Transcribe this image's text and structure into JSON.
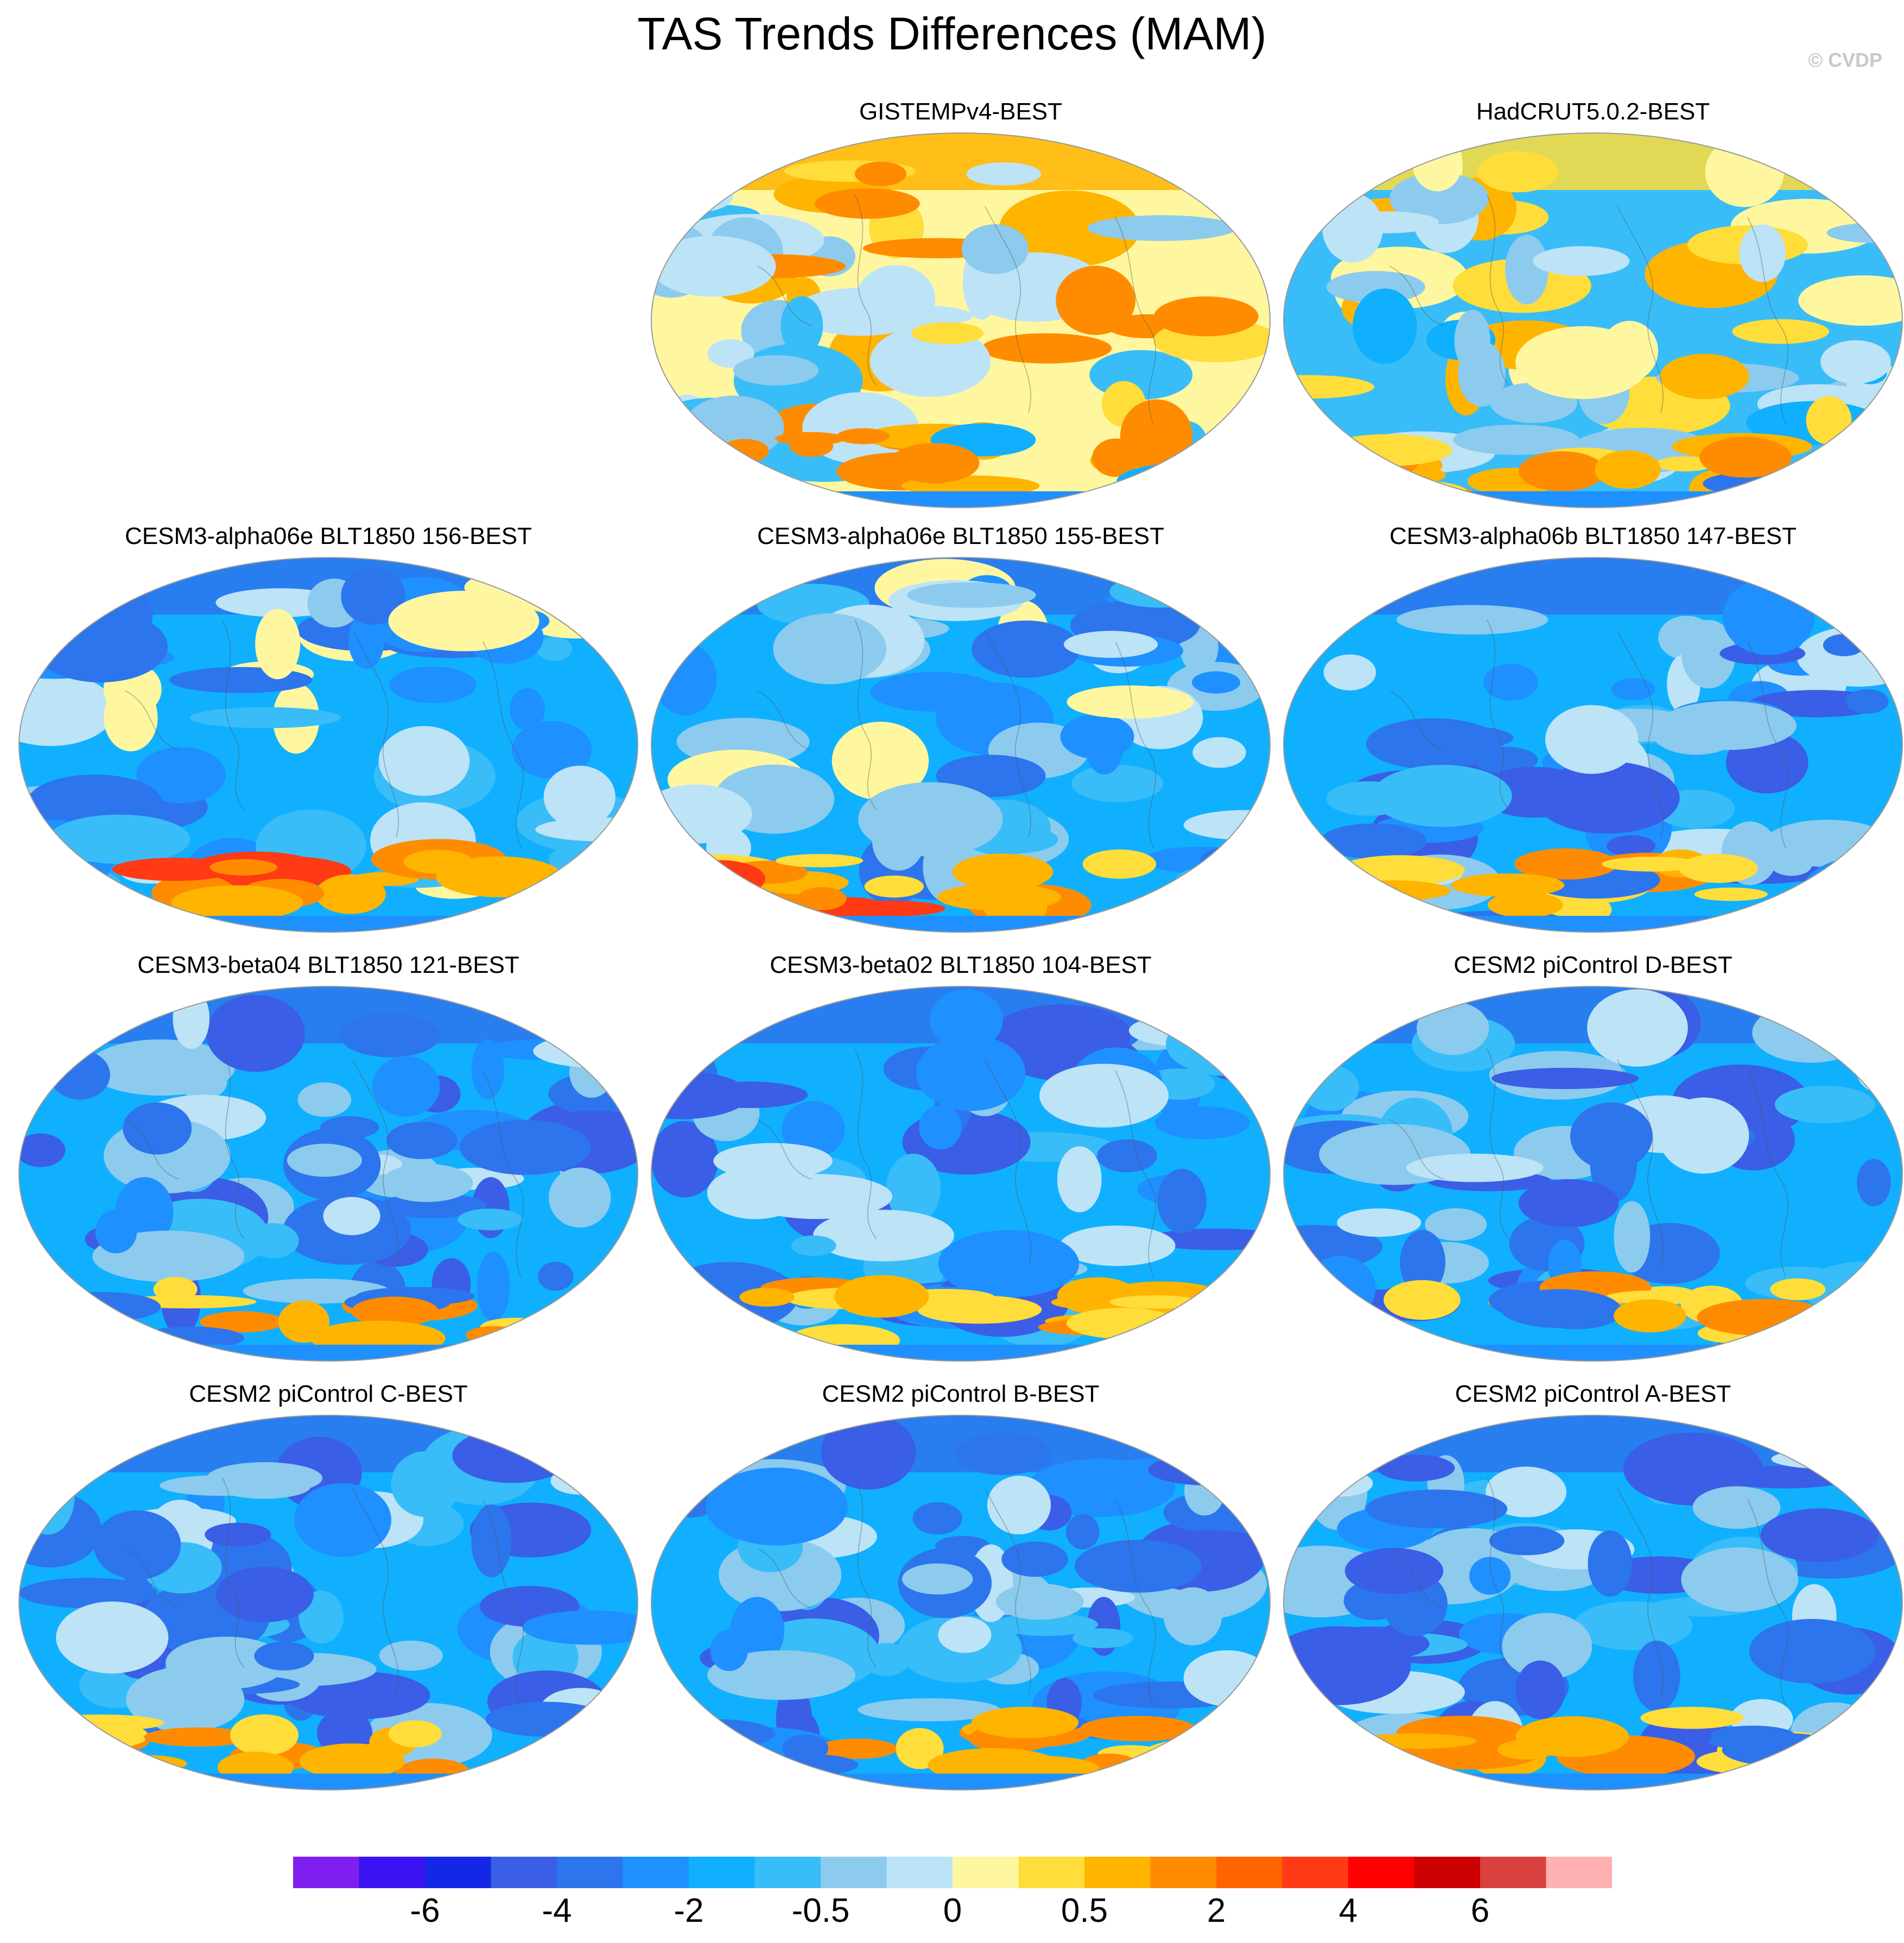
{
  "title": "TAS Trends Differences (MAM)",
  "watermark": "© CVDP",
  "panels": [
    {
      "title": "GISTEMPv4-BEST",
      "row": 0,
      "col": 1,
      "pattern": "warm"
    },
    {
      "title": "HadCRUT5.0.2-BEST",
      "row": 0,
      "col": 2,
      "pattern": "mixed"
    },
    {
      "title": "CESM3-alpha06e BLT1850 156-BEST",
      "row": 1,
      "col": 0,
      "pattern": "cool-south-warm"
    },
    {
      "title": "CESM3-alpha06e BLT1850 155-BEST",
      "row": 1,
      "col": 1,
      "pattern": "cool-south-warm"
    },
    {
      "title": "CESM3-alpha06b BLT1850 147-BEST",
      "row": 1,
      "col": 2,
      "pattern": "cool"
    },
    {
      "title": "CESM3-beta04 BLT1850 121-BEST",
      "row": 2,
      "col": 0,
      "pattern": "cool"
    },
    {
      "title": "CESM3-beta02 BLT1850 104-BEST",
      "row": 2,
      "col": 1,
      "pattern": "cool"
    },
    {
      "title": "CESM2 piControl D-BEST",
      "row": 2,
      "col": 2,
      "pattern": "cool"
    },
    {
      "title": "CESM2 piControl C-BEST",
      "row": 3,
      "col": 0,
      "pattern": "cool"
    },
    {
      "title": "CESM2 piControl B-BEST",
      "row": 3,
      "col": 1,
      "pattern": "cool"
    },
    {
      "title": "CESM2 piControl A-BEST",
      "row": 3,
      "col": 2,
      "pattern": "cool"
    }
  ],
  "colorbar": {
    "colors": [
      "#7f1fef",
      "#3b12f2",
      "#1426e6",
      "#3a5ee6",
      "#2d75ec",
      "#1e90ff",
      "#10b0ff",
      "#38bdf8",
      "#8ccbee",
      "#bde3f7",
      "#fff7a0",
      "#ffdd3a",
      "#ffb400",
      "#ff8c00",
      "#ff6400",
      "#ff3a14",
      "#ff0000",
      "#cc0000",
      "#d94040",
      "#ffb0b0"
    ],
    "labels": [
      "-6",
      "-4",
      "-2",
      "-0.5",
      "0",
      "0.5",
      "2",
      "4",
      "6"
    ]
  }
}
